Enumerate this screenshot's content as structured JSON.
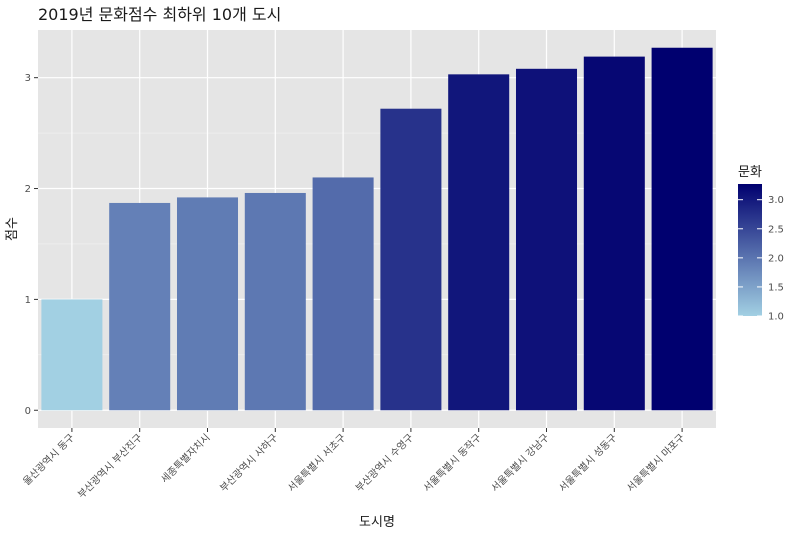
{
  "chart_data": {
    "type": "bar",
    "title": "2019년 문화점수 최하위 10개 도시",
    "xlabel": "도시명",
    "ylabel": "점수",
    "categories": [
      "울산광역시 동구",
      "부산광역시 부산진구",
      "세종특별자치시",
      "부산광역시 사하구",
      "서울특별시 서초구",
      "부산광역시 수영구",
      "서울특별시 동작구",
      "서울특별시 강남구",
      "서울특별시 성동구",
      "서울특별시 마포구"
    ],
    "values": [
      1.0,
      1.87,
      1.92,
      1.96,
      2.1,
      2.72,
      3.03,
      3.08,
      3.19,
      3.27
    ],
    "ylim": [
      -0.16,
      3.43
    ],
    "yticks": [
      0,
      1,
      2,
      3
    ],
    "ytick_labels": [
      "0",
      "1",
      "2",
      "3"
    ],
    "grid": true,
    "legend": {
      "title": "문화",
      "position": "right",
      "type": "colorbar",
      "range": [
        1.0,
        3.27
      ],
      "ticks": [
        1.0,
        1.5,
        2.0,
        2.5,
        3.0
      ],
      "tick_labels": [
        "1.0",
        "1.5",
        "2.0",
        "2.5",
        "3.0"
      ],
      "low_color": "#a2d0e3",
      "high_color": "#00006f"
    },
    "colors": {
      "panel_bg": "#e5e5e5",
      "grid_major": "#ffffff",
      "text": "#1a1a1a",
      "tick_text": "#4d4d4d"
    }
  }
}
